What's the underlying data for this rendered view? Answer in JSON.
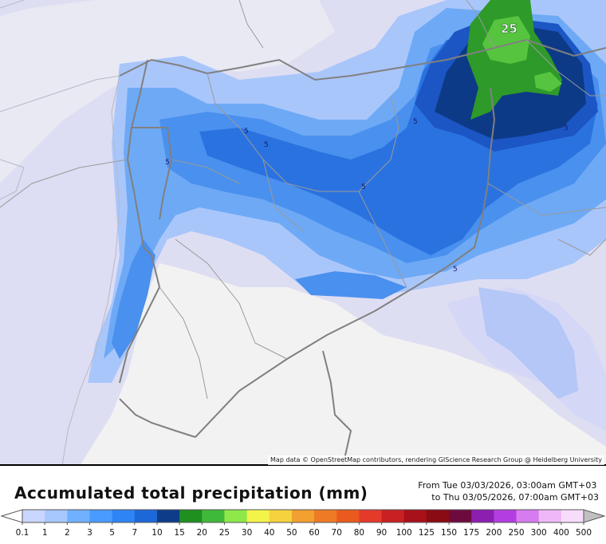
{
  "map": {
    "attribution": "Map data © OpenStreetMap contributors, rendering GIScience Research Group @ Heidelberg University",
    "contour_labels": [
      "5",
      "5",
      "5",
      "5",
      "5",
      "5",
      "5"
    ],
    "max_label": "25"
  },
  "legend": {
    "title": "Accumulated total precipitation (mm)",
    "period_from": "From Tue 03/03/2026, 03:00am GMT+03",
    "period_to": "to Thu 03/05/2026, 07:00am GMT+03",
    "ticks": [
      "0.1",
      "1",
      "2",
      "3",
      "5",
      "7",
      "10",
      "15",
      "20",
      "25",
      "30",
      "40",
      "50",
      "60",
      "70",
      "80",
      "90",
      "100",
      "125",
      "150",
      "175",
      "200",
      "250",
      "300",
      "400",
      "500"
    ],
    "colors": [
      "#c9d6ff",
      "#a6c8ff",
      "#6fb0ff",
      "#4a9bff",
      "#2f84f5",
      "#1d68d8",
      "#0e3c88",
      "#1f8f1f",
      "#3fb93a",
      "#8ee84a",
      "#f3f34a",
      "#f6d23e",
      "#f2a02f",
      "#ef7a25",
      "#ea5a1e",
      "#e33a2a",
      "#c82023",
      "#a8101a",
      "#8a0b14",
      "#6e0b3e",
      "#8b1fb0",
      "#b33de0",
      "#d67cf0",
      "#eeb8f8",
      "#f7ddfb",
      "#c0c0c0"
    ],
    "under_color": "#ffffff",
    "over_color": "#c0c0c0"
  }
}
